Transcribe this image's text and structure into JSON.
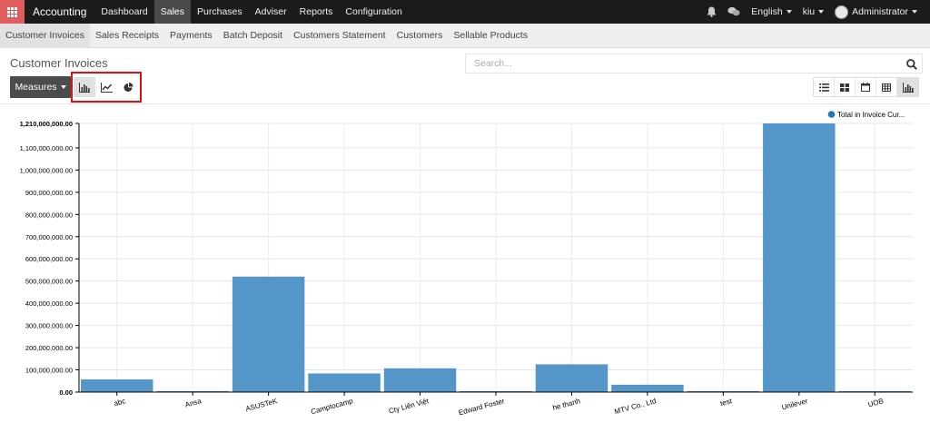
{
  "topbar": {
    "app_name": "Accounting",
    "menu": [
      "Dashboard",
      "Sales",
      "Purchases",
      "Adviser",
      "Reports",
      "Configuration"
    ],
    "active_menu": "Sales",
    "language": "English",
    "company": "kiu",
    "user": "Administrator"
  },
  "subnav": {
    "items": [
      "Customer Invoices",
      "Sales Receipts",
      "Payments",
      "Batch Deposit",
      "Customers Statement",
      "Customers",
      "Sellable Products"
    ],
    "active": "Customer Invoices"
  },
  "control_panel": {
    "title": "Customer Invoices",
    "search_placeholder": "Search...",
    "measures_label": "Measures",
    "graph_modes": [
      "bar-chart-icon",
      "line-chart-icon",
      "pie-chart-icon"
    ],
    "view_switcher": [
      "list-view-icon",
      "kanban-view-icon",
      "calendar-view-icon",
      "pivot-view-icon",
      "graph-view-icon"
    ],
    "active_view": "graph-view-icon"
  },
  "chart_data": {
    "type": "bar",
    "series": [
      {
        "name": "Total in Invoice Cur...",
        "color": "#5496c8",
        "values": [
          57000000,
          2000000,
          520000000,
          84000000,
          107000000,
          2000000,
          125000000,
          33000000,
          4000000,
          1210000000,
          1000000
        ]
      }
    ],
    "categories": [
      "abc",
      "Ansa",
      "ASUSTeK",
      "Camptocamp",
      "Cty Liên Việt",
      "Edward Foster",
      "he thanh",
      "MTV Co., Ltd",
      "test",
      "Unilever",
      "UOB"
    ],
    "ylim": [
      0,
      1210000000
    ],
    "yticks": [
      "0.00",
      "100,000,000.00",
      "200,000,000.00",
      "300,000,000.00",
      "400,000,000.00",
      "500,000,000.00",
      "600,000,000.00",
      "700,000,000.00",
      "800,000,000.00",
      "900,000,000.00",
      "1,000,000,000.00",
      "1,100,000,000.00",
      "1,210,000,000.00"
    ],
    "ytick_values": [
      0,
      100000000,
      200000000,
      300000000,
      400000000,
      500000000,
      600000000,
      700000000,
      800000000,
      900000000,
      1000000000,
      1100000000,
      1210000000
    ],
    "legend_position": "top-right",
    "grid": true
  }
}
